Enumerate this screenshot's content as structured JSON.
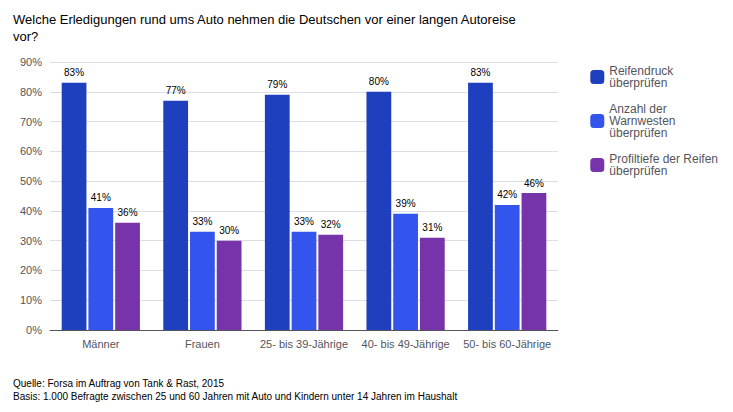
{
  "chart_data": {
    "type": "bar",
    "title": "Welche Erledigungen rund ums Auto nehmen die Deutschen vor einer langen Autoreise\nvor?",
    "categories": [
      "Männer",
      "Frauen",
      "25- bis 39-Jährige",
      "40- bis 49-Jährige",
      "50- bis 60-Jährige"
    ],
    "series": [
      {
        "name": "Reifendruck\nüberprüfen",
        "color": "#1E3FBE",
        "values": [
          83,
          77,
          79,
          80,
          83
        ],
        "value_labels": [
          "83%",
          "77%",
          "79%",
          "80%",
          "83%"
        ]
      },
      {
        "name": "Anzahl der\nWarnwesten\nüberprüfen",
        "color": "#3355EE",
        "values": [
          41,
          33,
          33,
          39,
          42
        ],
        "value_labels": [
          "41%",
          "33%",
          "33%",
          "39%",
          "42%"
        ]
      },
      {
        "name": "Profiltiefe der Reifen\nüberprüfen",
        "color": "#7733AA",
        "values": [
          36,
          30,
          32,
          31,
          46
        ],
        "value_labels": [
          "36%",
          "30%",
          "32%",
          "31%",
          "46%"
        ]
      }
    ],
    "ylim": [
      0,
      90
    ],
    "yticks": [
      {
        "value": 0,
        "label": "0%"
      },
      {
        "value": 10,
        "label": "10%"
      },
      {
        "value": 20,
        "label": "20%"
      },
      {
        "value": 30,
        "label": "30%"
      },
      {
        "value": 40,
        "label": "40%"
      },
      {
        "value": 50,
        "label": "50%"
      },
      {
        "value": 60,
        "label": "60%"
      },
      {
        "value": 70,
        "label": "70%"
      },
      {
        "value": 80,
        "label": "80%"
      },
      {
        "value": 90,
        "label": "90%"
      }
    ],
    "grid": true,
    "legend": "upper right",
    "data_labels": true,
    "source": "Quelle: Forsa im Auftrag von Tank & Rast, 2015\nBasis: 1.000 Befragte zwischen 25 und 60 Jahren mit Auto und Kindern unter 14 Jahren im Haushalt"
  }
}
